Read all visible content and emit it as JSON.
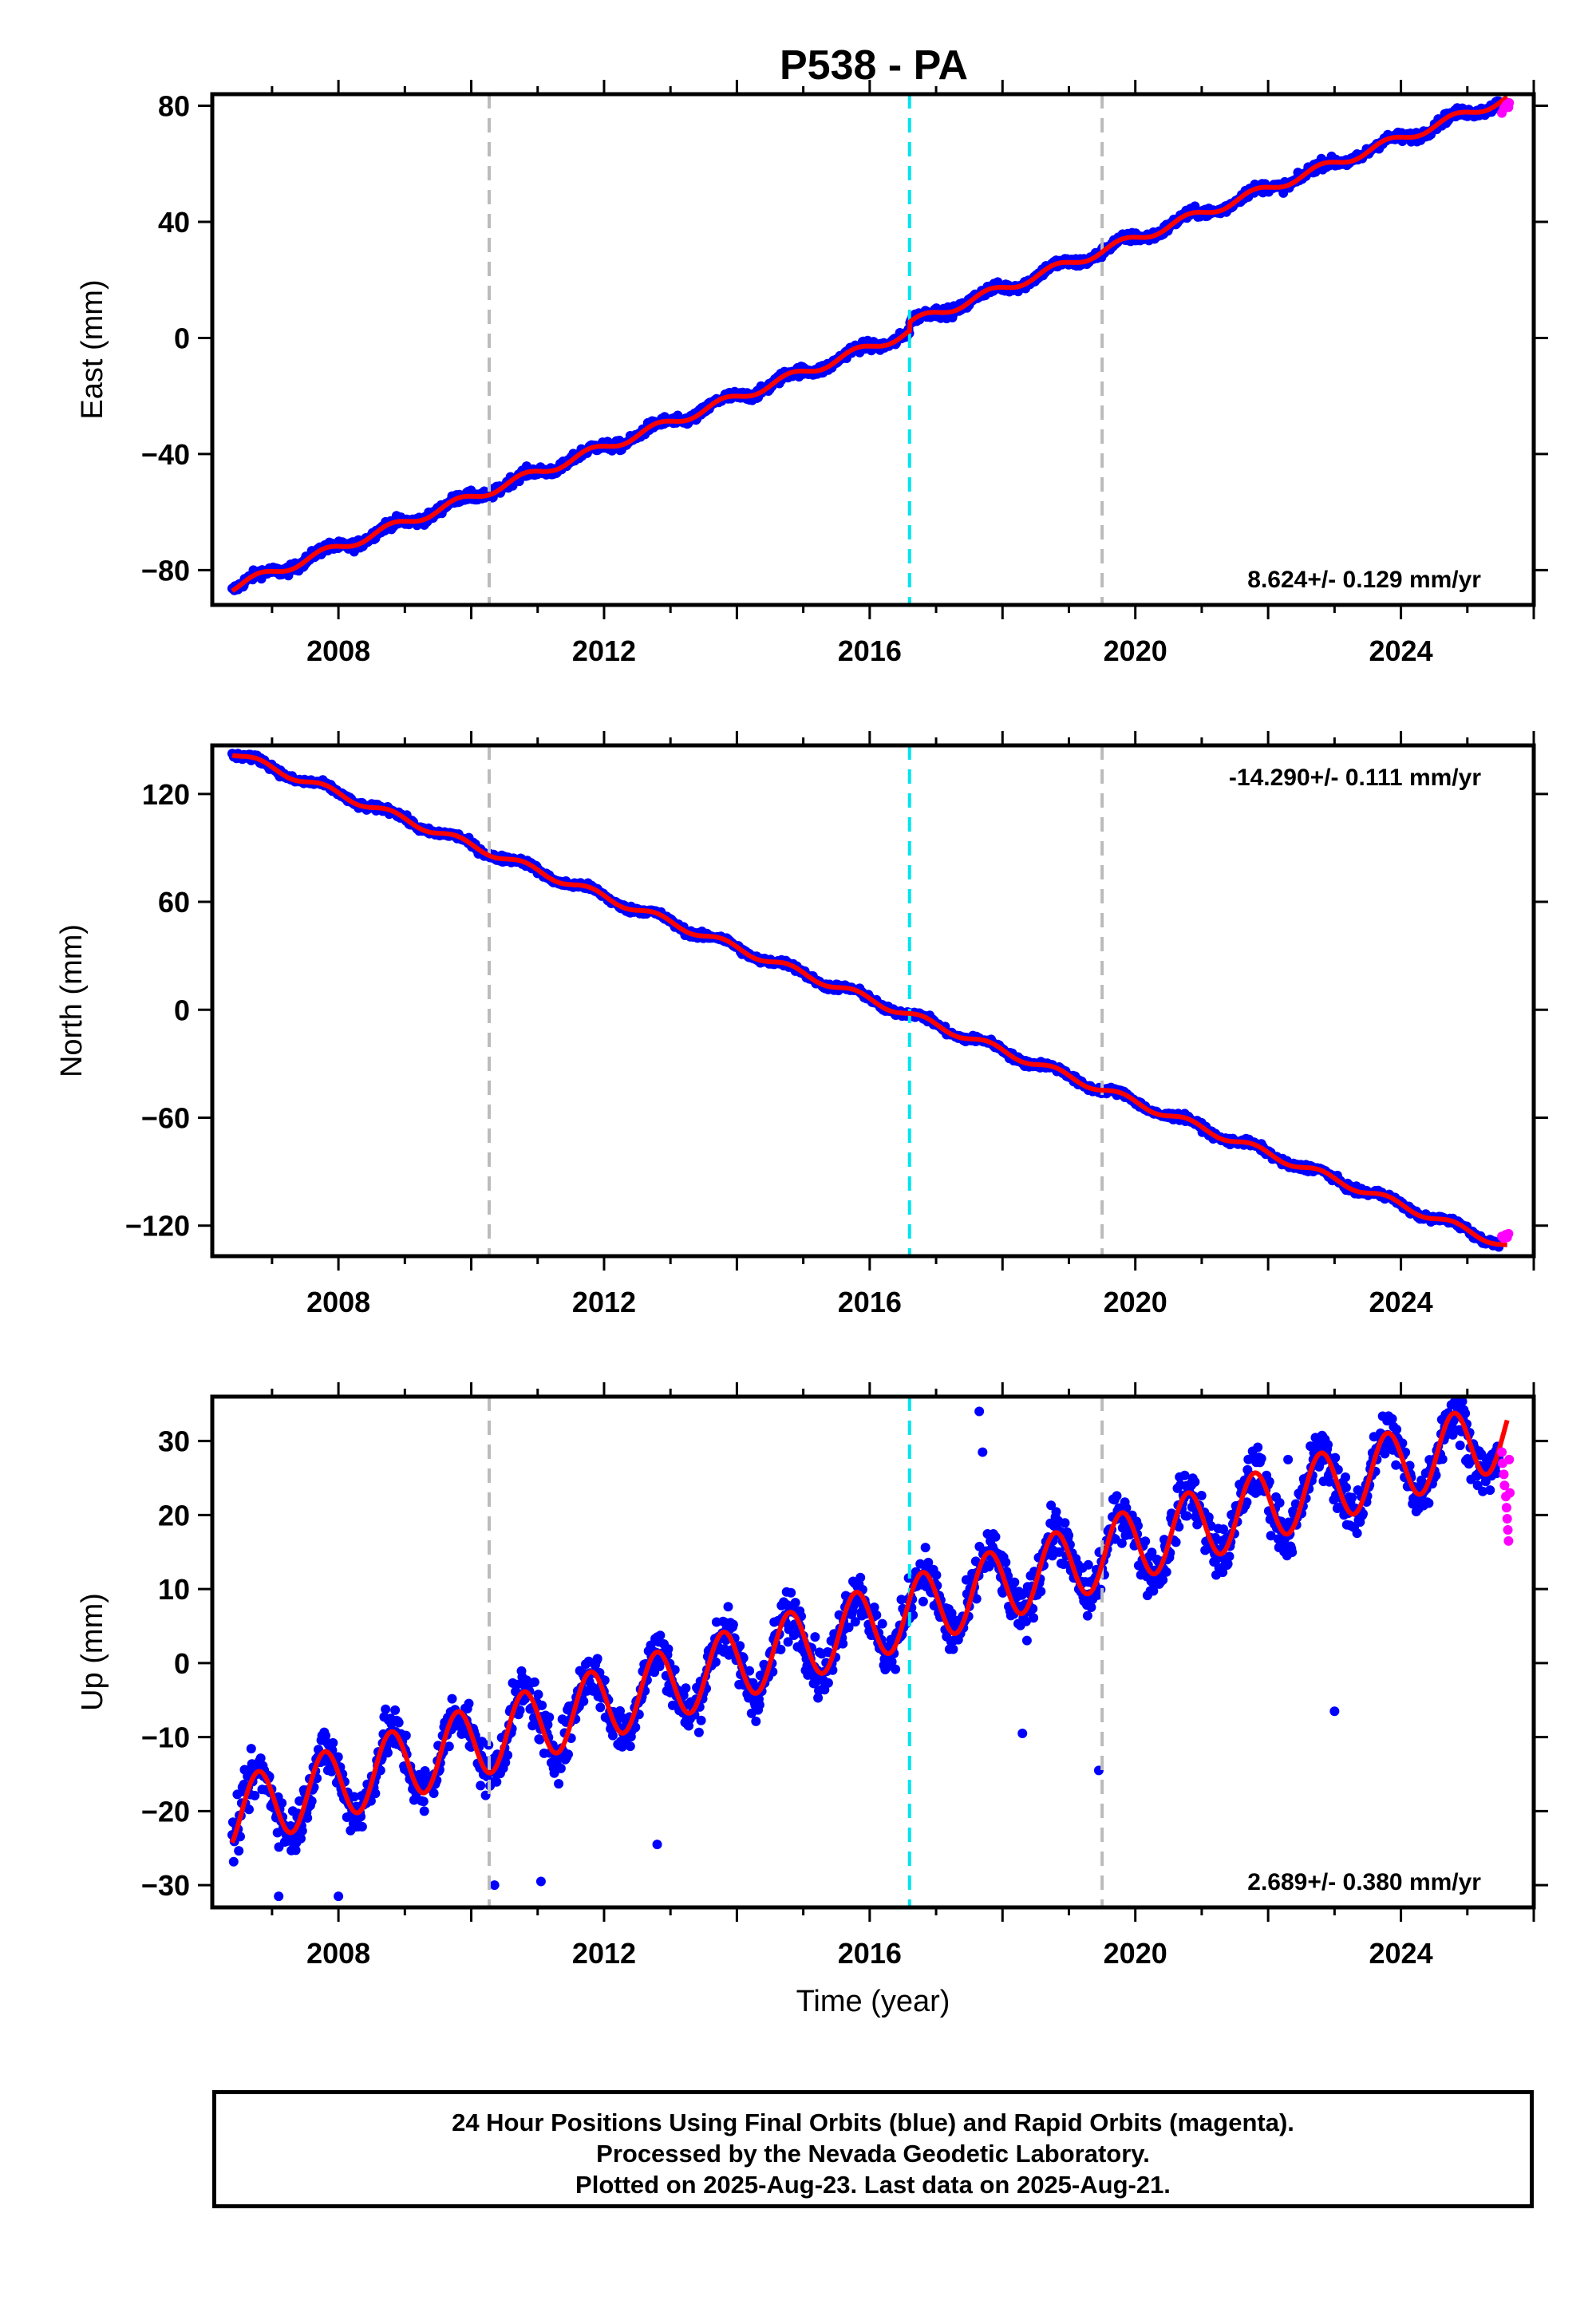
{
  "title": "P538 - PA",
  "colors": {
    "final_orbits": "#0000ff",
    "rapid_orbits": "#ff00ff",
    "model_fit": "#ff0000",
    "equipment_change": "#bbbbbb",
    "event_line": "#00e5ee"
  },
  "footer": {
    "lines": [
      "24 Hour Positions Using Final Orbits (blue) and Rapid Orbits (magenta).",
      "Processed by the Nevada Geodetic Laboratory.",
      "Plotted on 2025-Aug-23. Last data on 2025-Aug-21."
    ]
  },
  "xlabel": "Time (year)",
  "chart_data": [
    {
      "type": "scatter",
      "ylabel": "East (mm)",
      "xlim": [
        2006.1,
        2026.0
      ],
      "ylim": [
        -92,
        84
      ],
      "xticks": [
        2008,
        2012,
        2016,
        2020,
        2024
      ],
      "yticks": [
        -80,
        -40,
        0,
        40,
        80
      ],
      "rate_label": "8.624+/- 0.129 mm/yr",
      "rate_position": "bottom-right",
      "dashed_lines": [
        {
          "x": 2010.27,
          "kind": "equipment_change"
        },
        {
          "x": 2016.6,
          "kind": "event_line"
        },
        {
          "x": 2019.5,
          "kind": "equipment_change"
        }
      ],
      "model": {
        "start_year": 2006.4,
        "end_year": 2025.6,
        "rate": 8.624,
        "value_at_start": -86,
        "seasonal_amplitude": 1.5,
        "offsets": [
          {
            "x": 2016.6,
            "size": 3
          }
        ]
      },
      "noise_scatter": 1.6,
      "rapid_points": [
        [
          2025.52,
          77.5
        ],
        [
          2025.55,
          79.0
        ],
        [
          2025.58,
          80.0
        ],
        [
          2025.6,
          80.5
        ],
        [
          2025.62,
          79.5
        ],
        [
          2025.63,
          81.0
        ]
      ]
    },
    {
      "type": "scatter",
      "ylabel": "North (mm)",
      "xlim": [
        2006.1,
        2026.0
      ],
      "ylim": [
        -137,
        147
      ],
      "xticks": [
        2008,
        2012,
        2016,
        2020,
        2024
      ],
      "yticks": [
        -120,
        -60,
        0,
        60,
        120
      ],
      "rate_label": "-14.290+/- 0.111 mm/yr",
      "rate_position": "top-right",
      "dashed_lines": [
        {
          "x": 2010.27,
          "kind": "equipment_change"
        },
        {
          "x": 2016.6,
          "kind": "event_line"
        },
        {
          "x": 2019.5,
          "kind": "equipment_change"
        }
      ],
      "model": {
        "start_year": 2006.4,
        "end_year": 2025.6,
        "rate": -14.29,
        "value_at_start": 143,
        "seasonal_amplitude": 2.0,
        "offsets": []
      },
      "noise_scatter": 1.8,
      "rapid_points": [
        [
          2025.52,
          -126.0
        ],
        [
          2025.55,
          -127.0
        ],
        [
          2025.58,
          -125.0
        ],
        [
          2025.6,
          -126.5
        ],
        [
          2025.62,
          -124.5
        ]
      ]
    },
    {
      "type": "scatter",
      "ylabel": "Up (mm)",
      "xlim": [
        2006.1,
        2026.0
      ],
      "ylim": [
        -33,
        36
      ],
      "xticks": [
        2008,
        2012,
        2016,
        2020,
        2024
      ],
      "yticks": [
        -30,
        -20,
        -10,
        0,
        10,
        20,
        30
      ],
      "rate_label": "2.689+/- 0.380 mm/yr",
      "rate_position": "bottom-right",
      "dashed_lines": [
        {
          "x": 2010.27,
          "kind": "equipment_change"
        },
        {
          "x": 2016.6,
          "kind": "event_line"
        },
        {
          "x": 2019.5,
          "kind": "equipment_change"
        }
      ],
      "model": {
        "start_year": 2006.4,
        "end_year": 2025.6,
        "rate": 2.689,
        "value_at_start": -20.5,
        "seasonal_amplitude": 4.8,
        "offsets": []
      },
      "noise_scatter": 3.2,
      "outliers": [
        [
          2017.65,
          34.0
        ],
        [
          2017.7,
          28.5
        ],
        [
          2022.8,
          29.0
        ],
        [
          2023.0,
          -6.5
        ],
        [
          2007.1,
          -31.5
        ],
        [
          2008.0,
          -31.5
        ],
        [
          2010.35,
          -30.0
        ],
        [
          2011.05,
          -29.5
        ],
        [
          2012.8,
          -24.5
        ],
        [
          2018.3,
          -9.5
        ],
        [
          2019.45,
          -14.5
        ],
        [
          2022.3,
          27.5
        ]
      ],
      "rapid_points": [
        [
          2025.52,
          28.5
        ],
        [
          2025.53,
          27.0
        ],
        [
          2025.55,
          25.5
        ],
        [
          2025.56,
          24.0
        ],
        [
          2025.58,
          22.5
        ],
        [
          2025.59,
          21.0
        ],
        [
          2025.6,
          19.5
        ],
        [
          2025.61,
          18.0
        ],
        [
          2025.62,
          16.5
        ],
        [
          2025.63,
          27.5
        ],
        [
          2025.64,
          23.0
        ]
      ]
    }
  ]
}
